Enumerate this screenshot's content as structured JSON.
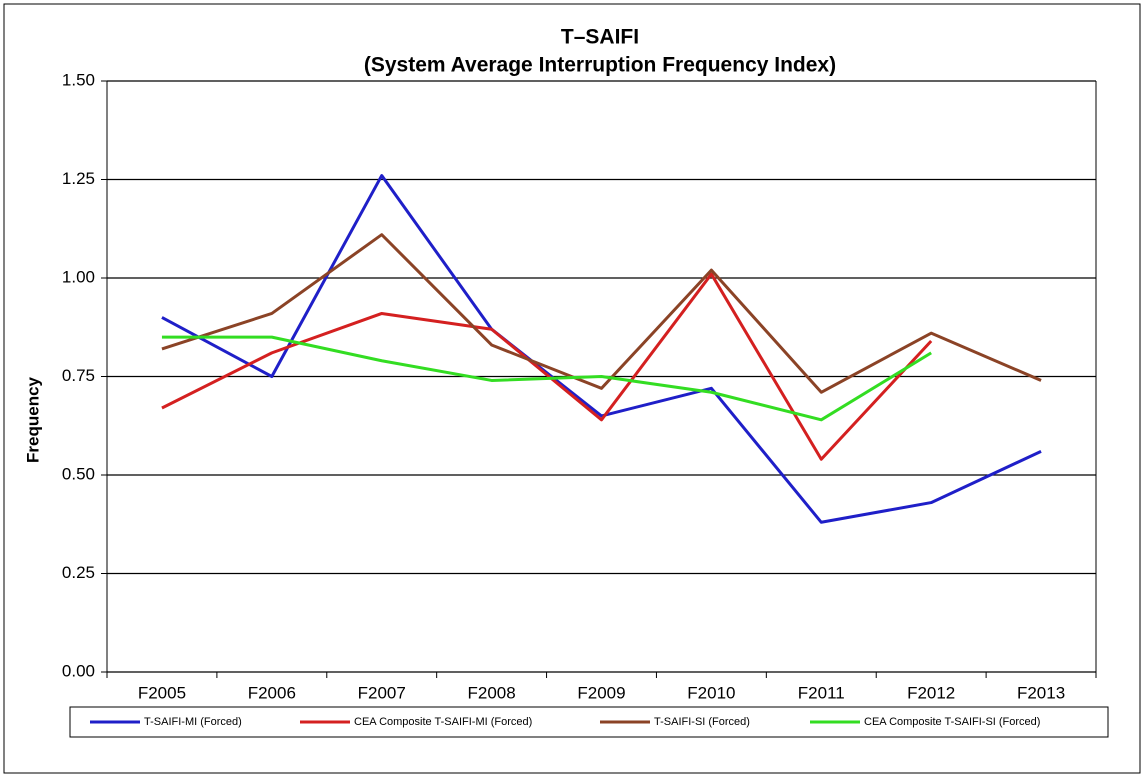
{
  "chart_data": {
    "type": "line",
    "title": "T–SAIFI",
    "subtitle": "(System  Average Interruption Frequency Index)",
    "y_label": "Frequency",
    "categories": [
      "F2005",
      "F2006",
      "F2007",
      "F2008",
      "F2009",
      "F2010",
      "F2011",
      "F2012",
      "F2013"
    ],
    "series": [
      {
        "name": "T-SAIFI-MI (Forced)",
        "color": "#1f1fc8",
        "values": [
          0.9,
          0.75,
          1.26,
          0.87,
          0.65,
          0.72,
          0.38,
          0.43,
          0.56
        ]
      },
      {
        "name": "CEA Composite T-SAIFI-MI (Forced)",
        "color": "#d42020",
        "values": [
          0.67,
          0.81,
          0.91,
          0.87,
          0.64,
          1.01,
          0.54,
          0.84,
          null
        ]
      },
      {
        "name": "T-SAIFI-SI (Forced)",
        "color": "#8b4326",
        "values": [
          0.82,
          0.91,
          1.11,
          0.83,
          0.72,
          1.02,
          0.71,
          0.86,
          0.74
        ]
      },
      {
        "name": "CEA Composite T-SAIFI-SI (Forced)",
        "color": "#33dd22",
        "values": [
          0.85,
          0.85,
          0.79,
          0.74,
          0.75,
          0.71,
          0.64,
          0.81,
          null
        ]
      }
    ],
    "ylim": [
      0,
      1.5
    ],
    "yticks": [
      {
        "value": 0,
        "label": "0.00"
      },
      {
        "value": 0.25,
        "label": "0.25"
      },
      {
        "value": 0.5,
        "label": "0.50"
      },
      {
        "value": 0.75,
        "label": "0.75"
      },
      {
        "value": 1.0,
        "label": "1.00"
      },
      {
        "value": 1.25,
        "label": "1.25"
      },
      {
        "value": 1.5,
        "label": "1.50"
      }
    ],
    "grid": true,
    "legend": "bottom"
  }
}
